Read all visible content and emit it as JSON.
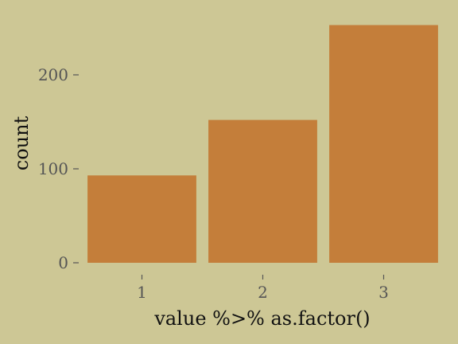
{
  "chart_data": {
    "type": "bar",
    "categories": [
      "1",
      "2",
      "3"
    ],
    "values": [
      93,
      152,
      253
    ],
    "title": "",
    "xlabel": "value %>% as.factor()",
    "ylabel": "count",
    "ylim": [
      0,
      265
    ],
    "yticks": [
      0,
      100,
      200
    ],
    "grid": false,
    "colors": {
      "background": "#CDC795",
      "bar": "#C47E3A",
      "tick": "#555555",
      "title_text": "#111111"
    }
  }
}
